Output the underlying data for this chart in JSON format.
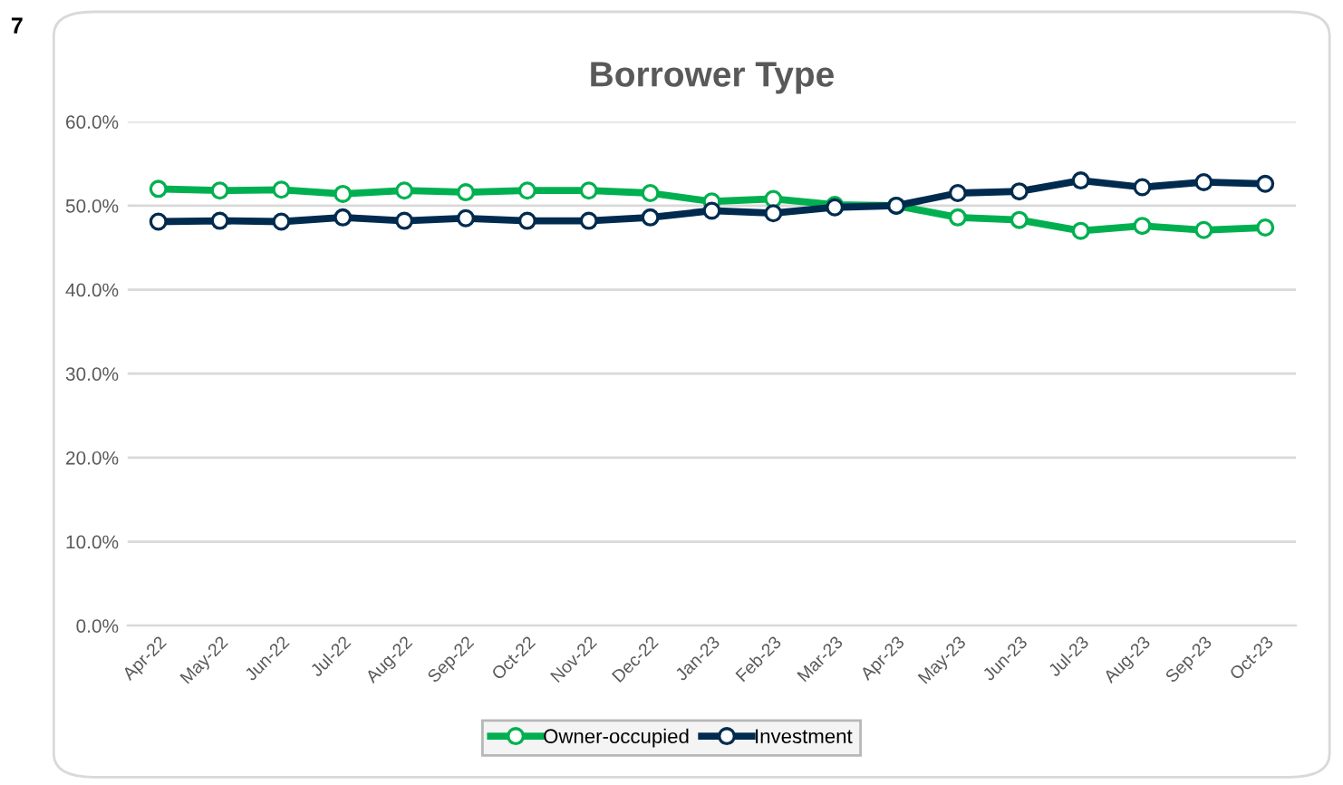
{
  "chart_data": {
    "type": "line",
    "title": "Borrower Type",
    "annotations": [
      "7"
    ],
    "categories": [
      "Apr-22",
      "May-22",
      "Jun-22",
      "Jul-22",
      "Aug-22",
      "Sep-22",
      "Oct-22",
      "Nov-22",
      "Dec-22",
      "Jan-23",
      "Feb-23",
      "Mar-23",
      "Apr-23",
      "May-23",
      "Jun-23",
      "Jul-23",
      "Aug-23",
      "Sep-23",
      "Oct-23"
    ],
    "series": [
      {
        "name": "Owner-occupied",
        "color": "#00b050",
        "values": [
          52.0,
          51.8,
          51.9,
          51.4,
          51.8,
          51.6,
          51.8,
          51.8,
          51.5,
          50.5,
          50.8,
          50.1,
          50.0,
          48.6,
          48.3,
          47.0,
          47.6,
          47.1,
          47.4
        ]
      },
      {
        "name": "Investment",
        "color": "#002b4f",
        "values": [
          48.1,
          48.2,
          48.1,
          48.6,
          48.2,
          48.5,
          48.2,
          48.2,
          48.6,
          49.4,
          49.1,
          49.8,
          50.0,
          51.5,
          51.7,
          53.0,
          52.2,
          52.8,
          52.6
        ]
      }
    ],
    "ylim": [
      0,
      60
    ],
    "yticks": [
      {
        "value": 0,
        "label": "0.0%"
      },
      {
        "value": 10,
        "label": "10.0%"
      },
      {
        "value": 20,
        "label": "20.0%"
      },
      {
        "value": 30,
        "label": "30.0%"
      },
      {
        "value": 40,
        "label": "40.0%"
      },
      {
        "value": 50,
        "label": "50.0%"
      },
      {
        "value": 60,
        "label": "60.0%"
      }
    ],
    "grid": "y",
    "legend": "bottom",
    "marker": "circle",
    "line_style": "solid"
  }
}
